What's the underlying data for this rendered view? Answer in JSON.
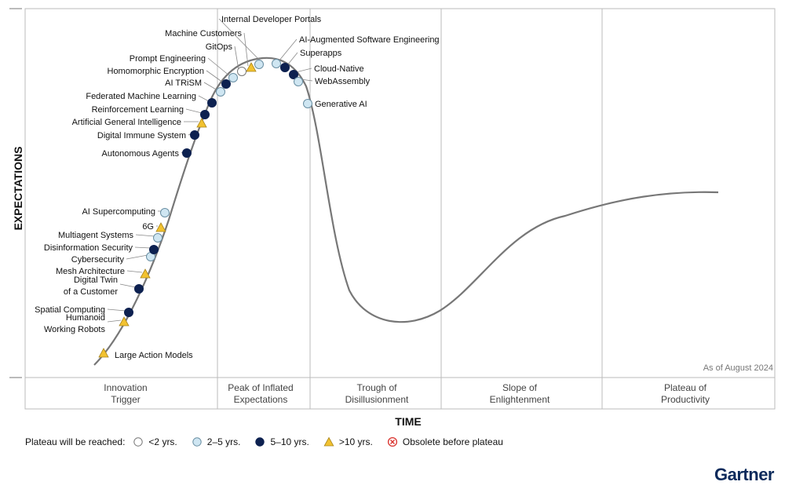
{
  "chart_data": {
    "type": "scatter",
    "title": "",
    "xlabel": "TIME",
    "ylabel": "EXPECTATIONS",
    "note": "As of August 2024",
    "phases": [
      {
        "line1": "Innovation",
        "line2": "Trigger"
      },
      {
        "line1": "Peak of Inflated",
        "line2": "Expectations"
      },
      {
        "line1": "Trough of",
        "line2": "Disillusionment"
      },
      {
        "line1": "Slope of",
        "line2": "Enlightenment"
      },
      {
        "line1": "Plateau of",
        "line2": "Productivity"
      }
    ],
    "legend": {
      "title": "Plateau will be reached:",
      "items": [
        {
          "key": "lt2",
          "label": "<2 yrs."
        },
        {
          "key": "2to5",
          "label": "2–5 yrs."
        },
        {
          "key": "5to10",
          "label": "5–10 yrs."
        },
        {
          "key": "gt10",
          "label": ">10 yrs."
        },
        {
          "key": "obsolete",
          "label": "Obsolete before plateau"
        }
      ]
    },
    "technologies": [
      {
        "name": "Large Action Models",
        "phase": "Innovation Trigger",
        "plateau": "gt10"
      },
      {
        "name": "Humanoid Working Robots",
        "phase": "Innovation Trigger",
        "plateau": "gt10"
      },
      {
        "name": "Spatial Computing",
        "phase": "Innovation Trigger",
        "plateau": "5to10"
      },
      {
        "name": "Digital Twin of a Customer",
        "phase": "Innovation Trigger",
        "plateau": "5to10"
      },
      {
        "name": "Mesh Architecture",
        "phase": "Innovation Trigger",
        "plateau": "gt10"
      },
      {
        "name": "Cybersecurity",
        "phase": "Innovation Trigger",
        "plateau": "2to5"
      },
      {
        "name": "Disinformation Security",
        "phase": "Innovation Trigger",
        "plateau": "5to10"
      },
      {
        "name": "Multiagent Systems",
        "phase": "Innovation Trigger",
        "plateau": "2to5"
      },
      {
        "name": "6G",
        "phase": "Innovation Trigger",
        "plateau": "gt10"
      },
      {
        "name": "AI Supercomputing",
        "phase": "Innovation Trigger",
        "plateau": "2to5"
      },
      {
        "name": "Autonomous Agents",
        "phase": "Innovation Trigger",
        "plateau": "5to10"
      },
      {
        "name": "Digital Immune System",
        "phase": "Innovation Trigger",
        "plateau": "5to10"
      },
      {
        "name": "Artificial General Intelligence",
        "phase": "Innovation Trigger",
        "plateau": "gt10"
      },
      {
        "name": "Reinforcement Learning",
        "phase": "Innovation Trigger",
        "plateau": "5to10"
      },
      {
        "name": "Federated Machine Learning",
        "phase": "Innovation Trigger",
        "plateau": "5to10"
      },
      {
        "name": "AI TRiSM",
        "phase": "Peak of Inflated Expectations",
        "plateau": "2to5"
      },
      {
        "name": "Homomorphic Encryption",
        "phase": "Peak of Inflated Expectations",
        "plateau": "5to10"
      },
      {
        "name": "Prompt Engineering",
        "phase": "Peak of Inflated Expectations",
        "plateau": "2to5"
      },
      {
        "name": "GitOps",
        "phase": "Peak of Inflated Expectations",
        "plateau": "lt2"
      },
      {
        "name": "Machine Customers",
        "phase": "Peak of Inflated Expectations",
        "plateau": "gt10"
      },
      {
        "name": "Internal Developer Portals",
        "phase": "Peak of Inflated Expectations",
        "plateau": "2to5"
      },
      {
        "name": "AI-Augmented Software Engineering",
        "phase": "Peak of Inflated Expectations",
        "plateau": "2to5"
      },
      {
        "name": "Superapps",
        "phase": "Peak of Inflated Expectations",
        "plateau": "5to10"
      },
      {
        "name": "Cloud-Native",
        "phase": "Peak of Inflated Expectations",
        "plateau": "5to10"
      },
      {
        "name": "WebAssembly",
        "phase": "Peak of Inflated Expectations",
        "plateau": "2to5"
      },
      {
        "name": "Generative AI",
        "phase": "Peak of Inflated Expectations",
        "plateau": "2to5"
      }
    ]
  },
  "labels": {
    "humanoid_line1": "Humanoid",
    "humanoid_line2": "Working Robots",
    "twin_line1": "Digital Twin",
    "twin_line2": "of a Customer"
  },
  "colors": {
    "lt2": "#ffffff",
    "2to5": "#cfe6f2",
    "5to10": "#0d2150",
    "gt10": "#f2c230",
    "obsolete": "#d9302b",
    "curve": "#777777",
    "grid": "#bbbbbb"
  },
  "brand": "Gartner"
}
